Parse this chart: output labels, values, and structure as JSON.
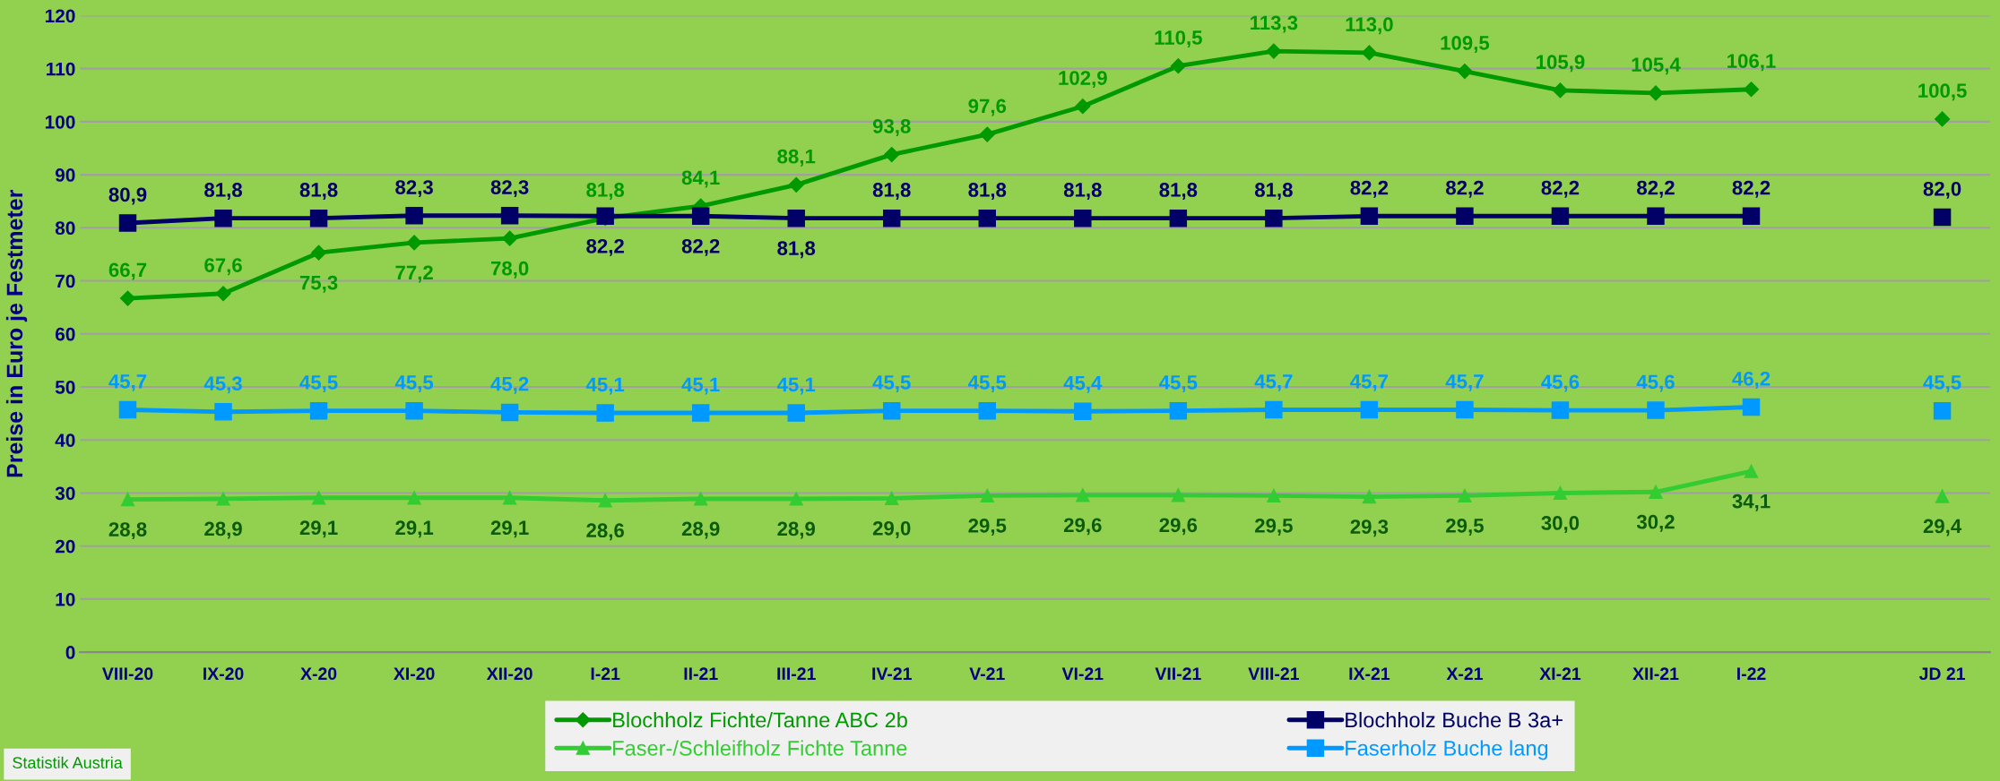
{
  "chart_data": {
    "type": "line",
    "ylabel": "Preise in Euro je Festmeter",
    "categories": [
      "VIII-20",
      "IX-20",
      "X-20",
      "XI-20",
      "XII-20",
      "I-21",
      "II-21",
      "III-21",
      "IV-21",
      "V-21",
      "VI-21",
      "VII-21",
      "VIII-21",
      "IX-21",
      "X-21",
      "XI-21",
      "XII-21",
      "I-22",
      null,
      "JD 21"
    ],
    "series": [
      {
        "name": "Blochholz Fichte/Tanne ABC 2b",
        "color": "#009900",
        "marker": "diamond",
        "values": [
          66.7,
          67.6,
          75.3,
          77.2,
          78.0,
          81.8,
          84.1,
          88.1,
          93.8,
          97.6,
          102.9,
          110.5,
          113.3,
          113.0,
          109.5,
          105.9,
          105.4,
          106.1,
          null,
          100.5
        ],
        "value_labels": [
          "66,7",
          "67,6",
          "75,3",
          "77,2",
          "78,0",
          "81,8",
          "84,1",
          "88,1",
          "93,8",
          "97,6",
          "102,9",
          "110,5",
          "113,3",
          "113,0",
          "109,5",
          "105,9",
          "105,4",
          "106,1",
          null,
          "100,5"
        ]
      },
      {
        "name": "Blochholz Buche B 3a+",
        "color": "#000066",
        "marker": "square",
        "values": [
          80.9,
          81.8,
          81.8,
          82.3,
          82.3,
          82.2,
          82.2,
          81.8,
          81.8,
          81.8,
          81.8,
          81.8,
          81.8,
          82.2,
          82.2,
          82.2,
          82.2,
          82.2,
          null,
          82.0
        ],
        "value_labels": [
          "80,9",
          "81,8",
          "81,8",
          "82,3",
          "82,3",
          "82,2",
          "82,2",
          "81,8",
          "81,8",
          "81,8",
          "81,8",
          "81,8",
          "81,8",
          "82,2",
          "82,2",
          "82,2",
          "82,2",
          "82,2",
          null,
          "82,0"
        ]
      },
      {
        "name": "Faser-/Schleifholz Fichte Tanne",
        "color": "#33cc33",
        "marker": "triangle",
        "values": [
          28.8,
          28.9,
          29.1,
          29.1,
          29.1,
          28.6,
          28.9,
          28.9,
          29.0,
          29.5,
          29.6,
          29.6,
          29.5,
          29.3,
          29.5,
          30.0,
          30.2,
          34.1,
          null,
          29.4
        ],
        "value_labels": [
          "28,8",
          "28,9",
          "29,1",
          "29,1",
          "29,1",
          "28,6",
          "28,9",
          "28,9",
          "29,0",
          "29,5",
          "29,6",
          "29,6",
          "29,5",
          "29,3",
          "29,5",
          "30,0",
          "30,2",
          "34,1",
          null,
          "29,4"
        ]
      },
      {
        "name": "Faserholz Buche lang",
        "color": "#0099ff",
        "marker": "square",
        "values": [
          45.7,
          45.3,
          45.5,
          45.5,
          45.2,
          45.1,
          45.1,
          45.1,
          45.5,
          45.5,
          45.4,
          45.5,
          45.7,
          45.7,
          45.7,
          45.6,
          45.6,
          46.2,
          null,
          45.5
        ],
        "value_labels": [
          "45,7",
          "45,3",
          "45,5",
          "45,5",
          "45,2",
          "45,1",
          "45,1",
          "45,1",
          "45,5",
          "45,5",
          "45,4",
          "45,5",
          "45,7",
          "45,7",
          "45,7",
          "45,6",
          "45,6",
          "46,2",
          null,
          "45,5"
        ]
      }
    ],
    "ylim": [
      0,
      120
    ],
    "yticks": [
      0,
      10,
      20,
      30,
      40,
      50,
      60,
      70,
      80,
      90,
      100,
      110,
      120
    ],
    "grid": "y",
    "legend": "bottom",
    "line_style": "solid",
    "annotations": [
      "Statistik Austria"
    ]
  }
}
